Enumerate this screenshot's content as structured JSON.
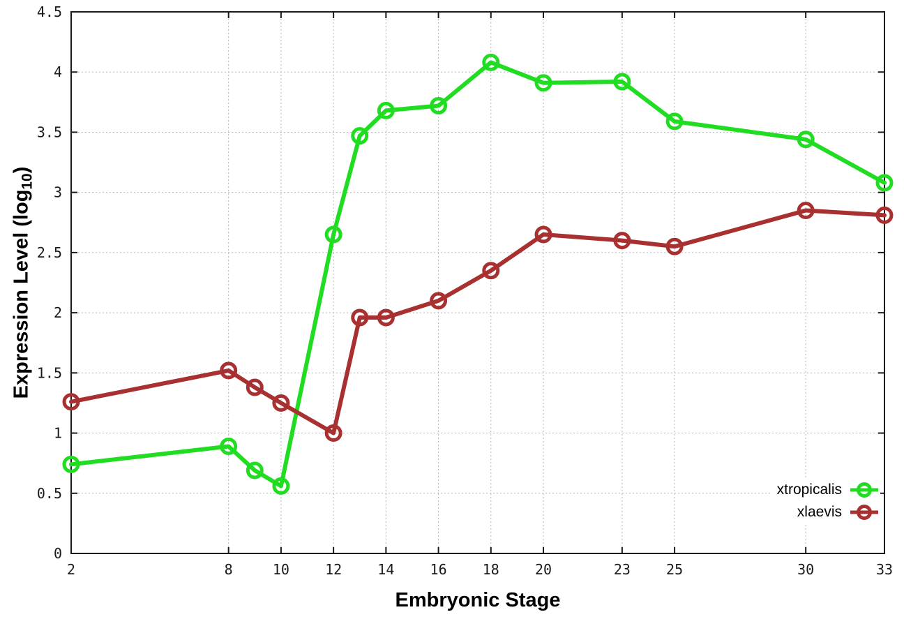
{
  "figure": {
    "background": "#ffffff",
    "axis_color": "#1a1a1a",
    "grid_color": "#b5b5b5",
    "tick_label_color": "#1a1a1a"
  },
  "axes": {
    "xlabel": "Embryonic Stage",
    "ylabel_prefix": "Expression Level (log",
    "ylabel_sub": "10",
    "ylabel_suffix": ")"
  },
  "legend": {
    "entries": [
      {
        "label": "xtropicalis",
        "color": "#21dd21"
      },
      {
        "label": "xlaevis",
        "color": "#a93030"
      }
    ],
    "position": "inside lower right"
  },
  "chart_data": {
    "type": "line",
    "title": "",
    "xlabel": "Embryonic Stage",
    "ylabel": "Expression Level (log10)",
    "x": [
      2,
      8,
      9,
      10,
      12,
      13,
      14,
      16,
      18,
      20,
      23,
      25,
      30,
      33
    ],
    "series": [
      {
        "name": "xtropicalis",
        "color": "#21dd21",
        "values": [
          0.74,
          0.89,
          0.69,
          0.56,
          2.65,
          3.47,
          3.68,
          3.72,
          4.08,
          3.91,
          3.92,
          3.59,
          3.44,
          3.08
        ]
      },
      {
        "name": "xlaevis",
        "color": "#a93030",
        "values": [
          1.26,
          1.52,
          1.38,
          1.25,
          1.0,
          1.96,
          1.96,
          2.1,
          2.35,
          2.65,
          2.6,
          2.55,
          2.85,
          2.81
        ]
      }
    ],
    "xlim": [
      2,
      33
    ],
    "ylim": [
      0,
      4.5
    ],
    "xticks": [
      2,
      8,
      10,
      12,
      14,
      16,
      18,
      20,
      23,
      25,
      30,
      33
    ],
    "xtick_labels": [
      "2",
      "8",
      "10",
      "12",
      "14",
      "16",
      "18",
      "20",
      "23",
      "25",
      "30",
      "33"
    ],
    "yticks": [
      0,
      0.5,
      1,
      1.5,
      2,
      2.5,
      3,
      3.5,
      4,
      4.5
    ],
    "ytick_labels": [
      "0",
      "0.5",
      "1",
      "1.5",
      "2",
      "2.5",
      "3",
      "3.5",
      "4",
      "4.5"
    ],
    "grid": true,
    "marker": "open-circle",
    "legend_position": "inside lower right"
  }
}
